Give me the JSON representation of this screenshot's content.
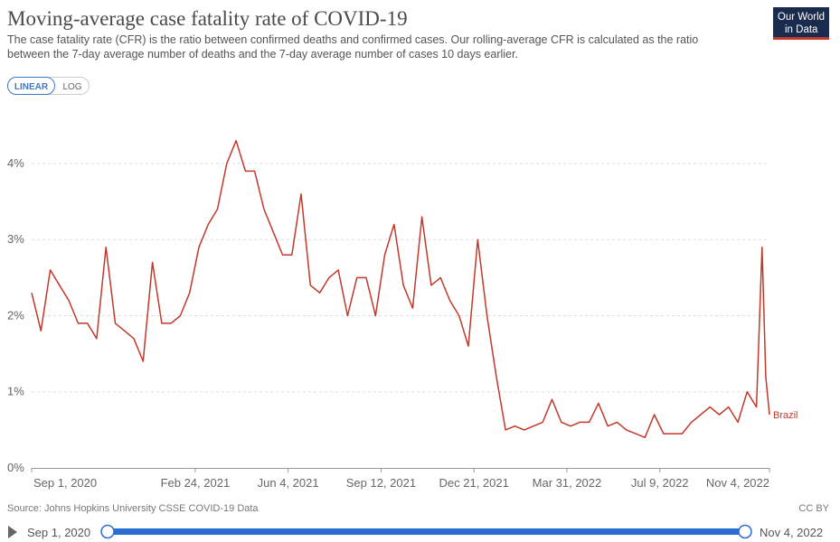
{
  "header": {
    "title": "Moving-average case fatality rate of COVID-19",
    "subtitle_lines": [
      "The case fatality rate (CFR) is the ratio between confirmed deaths and confirmed cases. Our rolling-average CFR is calculated as the ratio",
      "between the 7-day average number of deaths and the 7-day average number of cases 10 days earlier."
    ],
    "logo": [
      "Our World",
      "in Data"
    ]
  },
  "controls": {
    "scale_buttons": [
      "LINEAR",
      "LOG"
    ],
    "timeline_start": "Sep 1, 2020",
    "timeline_end": "Nov 4, 2022"
  },
  "footer": {
    "source": "Source: Johns Hopkins University CSSE COVID-19 Data",
    "license": "CC BY"
  },
  "chart_data": {
    "type": "line",
    "log_scale": false,
    "grid": true,
    "x": [
      "2020-09-01",
      "2020-09-11",
      "2020-09-21",
      "2020-10-01",
      "2020-10-11",
      "2020-10-21",
      "2020-10-31",
      "2020-11-10",
      "2020-11-20",
      "2020-11-30",
      "2020-12-10",
      "2020-12-20",
      "2020-12-30",
      "2021-01-09",
      "2021-01-19",
      "2021-01-29",
      "2021-02-08",
      "2021-02-18",
      "2021-02-28",
      "2021-03-10",
      "2021-03-20",
      "2021-03-30",
      "2021-04-09",
      "2021-04-19",
      "2021-04-29",
      "2021-05-09",
      "2021-05-19",
      "2021-05-29",
      "2021-06-08",
      "2021-06-18",
      "2021-06-28",
      "2021-07-08",
      "2021-07-18",
      "2021-07-28",
      "2021-08-07",
      "2021-08-17",
      "2021-08-27",
      "2021-09-06",
      "2021-09-16",
      "2021-09-26",
      "2021-10-06",
      "2021-10-16",
      "2021-10-26",
      "2021-11-05",
      "2021-11-15",
      "2021-11-25",
      "2021-12-05",
      "2021-12-15",
      "2021-12-25",
      "2022-01-04",
      "2022-01-14",
      "2022-01-24",
      "2022-02-03",
      "2022-02-13",
      "2022-02-23",
      "2022-03-05",
      "2022-03-15",
      "2022-03-25",
      "2022-04-04",
      "2022-04-14",
      "2022-04-24",
      "2022-05-04",
      "2022-05-14",
      "2022-05-24",
      "2022-06-03",
      "2022-06-13",
      "2022-06-23",
      "2022-07-03",
      "2022-07-13",
      "2022-07-23",
      "2022-08-02",
      "2022-08-12",
      "2022-08-22",
      "2022-09-01",
      "2022-09-11",
      "2022-09-21",
      "2022-10-01",
      "2022-10-11",
      "2022-10-21",
      "2022-10-27",
      "2022-10-31",
      "2022-11-04"
    ],
    "series": [
      {
        "name": "Brazil",
        "color": "#c0392b",
        "values": [
          2.3,
          1.8,
          2.6,
          2.4,
          2.2,
          1.9,
          1.9,
          1.7,
          2.9,
          1.9,
          1.8,
          1.7,
          1.4,
          2.7,
          1.9,
          1.9,
          2.0,
          2.3,
          2.9,
          3.2,
          3.4,
          4.0,
          4.3,
          3.9,
          3.9,
          3.4,
          3.1,
          2.8,
          2.8,
          3.6,
          2.4,
          2.3,
          2.5,
          2.6,
          2.0,
          2.5,
          2.5,
          2.0,
          2.8,
          3.2,
          2.4,
          2.1,
          3.3,
          2.4,
          2.5,
          2.2,
          2.0,
          1.6,
          3.0,
          2.0,
          1.2,
          0.5,
          0.55,
          0.5,
          0.55,
          0.6,
          0.9,
          0.6,
          0.55,
          0.6,
          0.6,
          0.85,
          0.55,
          0.6,
          0.5,
          0.45,
          0.4,
          0.7,
          0.45,
          0.45,
          0.45,
          0.6,
          0.7,
          0.8,
          0.7,
          0.8,
          0.6,
          1.0,
          0.8,
          2.9,
          1.2,
          0.7
        ]
      }
    ],
    "xlim": [
      "2020-09-01",
      "2022-11-04"
    ],
    "xticks": [
      {
        "value": "2020-09-01",
        "label": "Sep 1, 2020"
      },
      {
        "value": "2021-02-24",
        "label": "Feb 24, 2021"
      },
      {
        "value": "2021-06-04",
        "label": "Jun 4, 2021"
      },
      {
        "value": "2021-09-12",
        "label": "Sep 12, 2021"
      },
      {
        "value": "2021-12-21",
        "label": "Dec 21, 2021"
      },
      {
        "value": "2022-03-31",
        "label": "Mar 31, 2022"
      },
      {
        "value": "2022-07-09",
        "label": "Jul 9, 2022"
      },
      {
        "value": "2022-11-04",
        "label": "Nov 4, 2022"
      }
    ],
    "ylim": [
      0,
      4.7
    ],
    "yticks": [
      {
        "value": 0,
        "label": "0%"
      },
      {
        "value": 1,
        "label": "1%"
      },
      {
        "value": 2,
        "label": "2%"
      },
      {
        "value": 3,
        "label": "3%"
      },
      {
        "value": 4,
        "label": "4%"
      }
    ]
  }
}
